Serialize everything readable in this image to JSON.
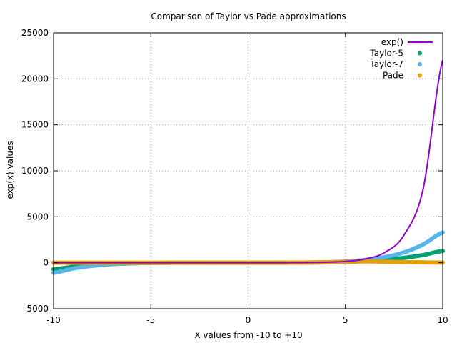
{
  "chart_data": {
    "type": "line",
    "title": "Comparison of Taylor vs Pade approximations",
    "xlabel": "X values from -10 to +10",
    "ylabel": "exp(x) values",
    "xlim": [
      -10,
      10
    ],
    "ylim": [
      -5000,
      25000
    ],
    "xticks": [
      -10,
      -5,
      0,
      5,
      10
    ],
    "xtick_labels": [
      "-10",
      "-5",
      "0",
      "5",
      "10"
    ],
    "yticks": [
      -5000,
      0,
      5000,
      10000,
      15000,
      20000,
      25000
    ],
    "ytick_labels": [
      "-5000",
      "0",
      "5000",
      "10000",
      "15000",
      "20000",
      "25000"
    ],
    "grid": true,
    "legend_position": "top-right",
    "x": [
      -10,
      -9,
      -8,
      -7,
      -6,
      -5,
      -4,
      -3,
      -2,
      -1,
      0,
      1,
      2,
      3,
      4,
      5,
      6,
      7,
      8,
      9,
      10
    ],
    "series": [
      {
        "name": "exp()",
        "style": "line",
        "color": "#9400d3",
        "values": [
          0,
          0,
          0,
          0,
          0,
          0,
          0,
          0,
          0,
          0,
          1,
          3,
          7,
          20,
          55,
          148,
          403,
          1097,
          2981,
          8103,
          22026
        ]
      },
      {
        "name": "Taylor-5",
        "style": "points",
        "color": "#009e73",
        "values": [
          -704,
          -436,
          -255,
          -136,
          -63,
          -22,
          -3,
          1,
          0,
          0,
          1,
          3,
          7,
          19,
          43,
          92,
          178,
          319,
          534,
          843,
          1284
        ]
      },
      {
        "name": "Taylor-7",
        "style": "points",
        "color": "#56b4e9",
        "values": [
          -1098,
          -625,
          -334,
          -162,
          -67,
          -20,
          -2,
          0,
          0,
          0,
          1,
          3,
          7,
          20,
          54,
          136,
          301,
          608,
          1120,
          2000,
          3284
        ]
      },
      {
        "name": "Pade",
        "style": "points",
        "color": "#e69f00",
        "values": [
          0,
          0,
          0,
          0,
          0,
          0,
          0,
          0,
          0,
          0,
          1,
          3,
          7,
          20,
          51,
          112,
          150,
          120,
          78,
          40,
          20
        ]
      }
    ]
  }
}
